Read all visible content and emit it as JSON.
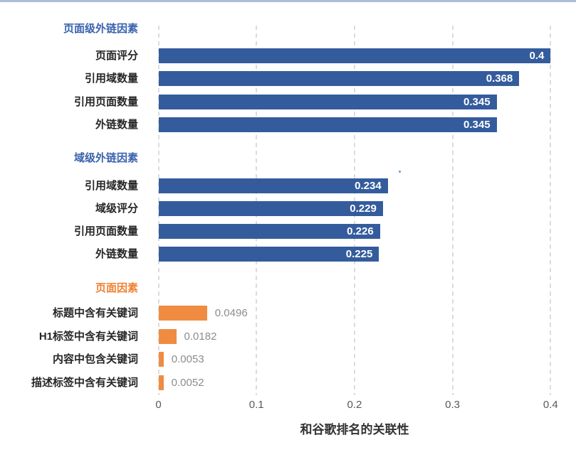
{
  "page": {
    "top_border_color": "#ABBDDA",
    "background": "#FFFFFF"
  },
  "marker_dot": {
    "color": "#5B9BE6"
  },
  "chart_data": {
    "type": "bar",
    "orientation": "horizontal",
    "title": "",
    "xlabel": "和谷歌排名的关联性",
    "ylabel": "",
    "xlim": [
      0,
      0.42
    ],
    "grid": "vertical-dashed",
    "legend": "none",
    "x_ticks": [
      {
        "value": 0,
        "label": "0"
      },
      {
        "value": 0.1,
        "label": "0.1"
      },
      {
        "value": 0.2,
        "label": "0.2"
      },
      {
        "value": 0.3,
        "label": "0.3"
      },
      {
        "value": 0.4,
        "label": "0.4"
      }
    ],
    "colors": {
      "blue_bar": "#345C9D",
      "blue_header": "#3B63AC",
      "orange_bar": "#EF8C42",
      "orange_header": "#F08236",
      "inside_value": "#FFFFFF",
      "outside_value": "#8C8C8C",
      "gridline": "#DCDCDC",
      "tick": "#595959",
      "row_label": "#262626",
      "axis_label": "#333333"
    },
    "groups": [
      {
        "name": "页面级外链因素",
        "color_key": "blue",
        "value_placement": "inside",
        "items": [
          {
            "label": "页面评分",
            "value": 0.4,
            "display": "0.4"
          },
          {
            "label": "引用域数量",
            "value": 0.368,
            "display": "0.368"
          },
          {
            "label": "引用页面数量",
            "value": 0.345,
            "display": "0.345"
          },
          {
            "label": "外链数量",
            "value": 0.345,
            "display": "0.345"
          }
        ]
      },
      {
        "name": "域级外链因素",
        "color_key": "blue",
        "value_placement": "inside",
        "items": [
          {
            "label": "引用域数量",
            "value": 0.234,
            "display": "0.234"
          },
          {
            "label": "域级评分",
            "value": 0.229,
            "display": "0.229"
          },
          {
            "label": "引用页面数量",
            "value": 0.226,
            "display": "0.226"
          },
          {
            "label": "外链数量",
            "value": 0.225,
            "display": "0.225"
          }
        ]
      },
      {
        "name": "页面因素",
        "color_key": "orange",
        "value_placement": "outside",
        "items": [
          {
            "label": "标题中含有关键词",
            "value": 0.0496,
            "display": "0.0496"
          },
          {
            "label": "H1标签中含有关键词",
            "value": 0.0182,
            "display": "0.0182"
          },
          {
            "label": "内容中包含关键词",
            "value": 0.0053,
            "display": "0.0053"
          },
          {
            "label": "描述标签中含有关键词",
            "value": 0.0052,
            "display": "0.0052"
          }
        ]
      }
    ]
  }
}
